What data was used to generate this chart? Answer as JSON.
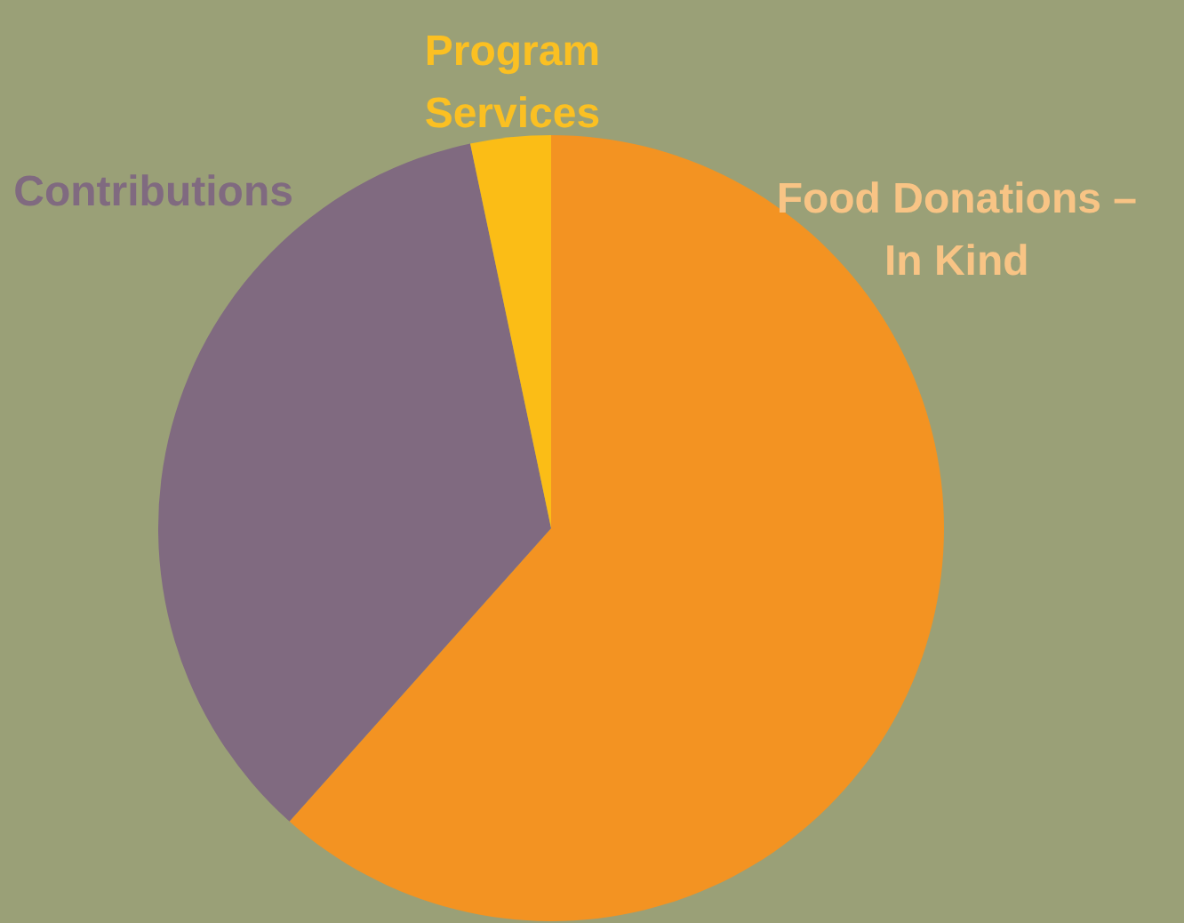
{
  "chart_data": {
    "type": "pie",
    "categories": [
      "Food Donations – In Kind",
      "Contributions",
      "Program Services"
    ],
    "values": [
      61.6,
      35.1,
      3.3
    ],
    "colors": [
      "#f39322",
      "#806a80",
      "#fbbd16"
    ]
  }
}
